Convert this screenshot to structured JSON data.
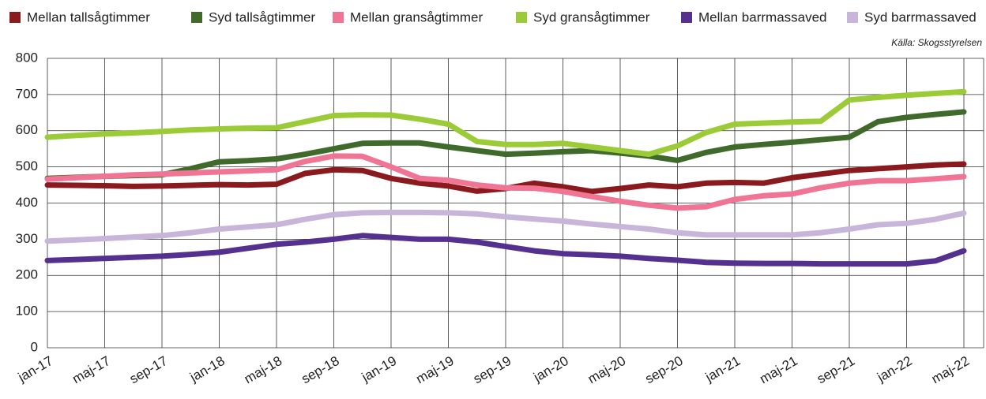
{
  "chart_data": {
    "type": "line",
    "source": "Källa: Skogsstyrelsen",
    "categories": [
      "jan-17",
      null,
      "maj-17",
      null,
      "sep-17",
      null,
      "jan-18",
      null,
      "maj-18",
      null,
      "sep-18",
      null,
      "jan-19",
      null,
      "maj-19",
      null,
      "sep-19",
      null,
      "jan-20",
      null,
      "maj-20",
      null,
      "sep-20",
      null,
      "jan-21",
      null,
      "maj-21",
      null,
      "sep-21",
      null,
      "jan-22",
      null,
      "maj-22"
    ],
    "ylim": [
      0,
      800
    ],
    "yticks": [
      0,
      100,
      200,
      300,
      400,
      500,
      600,
      700,
      800
    ],
    "grid": true,
    "series": [
      {
        "name": "Mellan tallsågtimmer",
        "color": "#8b1a1f",
        "values": [
          450,
          449,
          448,
          446,
          447,
          449,
          451,
          450,
          452,
          482,
          492,
          490,
          468,
          455,
          447,
          433,
          440,
          455,
          445,
          432,
          440,
          450,
          445,
          455,
          457,
          455,
          470,
          480,
          490,
          495,
          500,
          505,
          508
        ]
      },
      {
        "name": "Syd tallsågtimmer",
        "color": "#3f6a2b",
        "values": [
          468,
          471,
          474,
          476,
          478,
          495,
          514,
          517,
          522,
          535,
          550,
          565,
          566,
          566,
          555,
          545,
          535,
          538,
          542,
          545,
          538,
          530,
          518,
          540,
          555,
          562,
          568,
          575,
          582,
          625,
          637,
          645,
          652
        ]
      },
      {
        "name": "Mellan gransågtimmer",
        "color": "#f07594",
        "values": [
          466,
          470,
          474,
          478,
          480,
          483,
          486,
          489,
          492,
          515,
          530,
          529,
          500,
          468,
          463,
          450,
          442,
          441,
          432,
          418,
          405,
          394,
          386,
          390,
          410,
          420,
          425,
          442,
          455,
          462,
          462,
          467,
          473
        ]
      },
      {
        "name": "Syd gransågtimmer",
        "color": "#9ccb38",
        "values": [
          582,
          587,
          591,
          594,
          598,
          602,
          605,
          607,
          608,
          625,
          642,
          644,
          643,
          632,
          618,
          570,
          562,
          562,
          565,
          555,
          545,
          535,
          558,
          595,
          618,
          621,
          624,
          626,
          685,
          692,
          698,
          703,
          708
        ]
      },
      {
        "name": "Mellan barrmassaved",
        "color": "#55308f",
        "values": [
          241,
          244,
          247,
          250,
          253,
          258,
          264,
          275,
          286,
          292,
          300,
          310,
          305,
          300,
          300,
          292,
          280,
          268,
          260,
          257,
          253,
          247,
          242,
          236,
          234,
          233,
          233,
          232,
          232,
          232,
          232,
          240,
          268
        ]
      },
      {
        "name": "Syd barrmassaved",
        "color": "#c7b5da",
        "values": [
          295,
          298,
          302,
          306,
          310,
          318,
          328,
          334,
          340,
          355,
          368,
          373,
          374,
          374,
          373,
          370,
          362,
          356,
          350,
          342,
          335,
          328,
          318,
          312,
          312,
          312,
          312,
          318,
          328,
          340,
          344,
          355,
          372
        ]
      }
    ]
  }
}
